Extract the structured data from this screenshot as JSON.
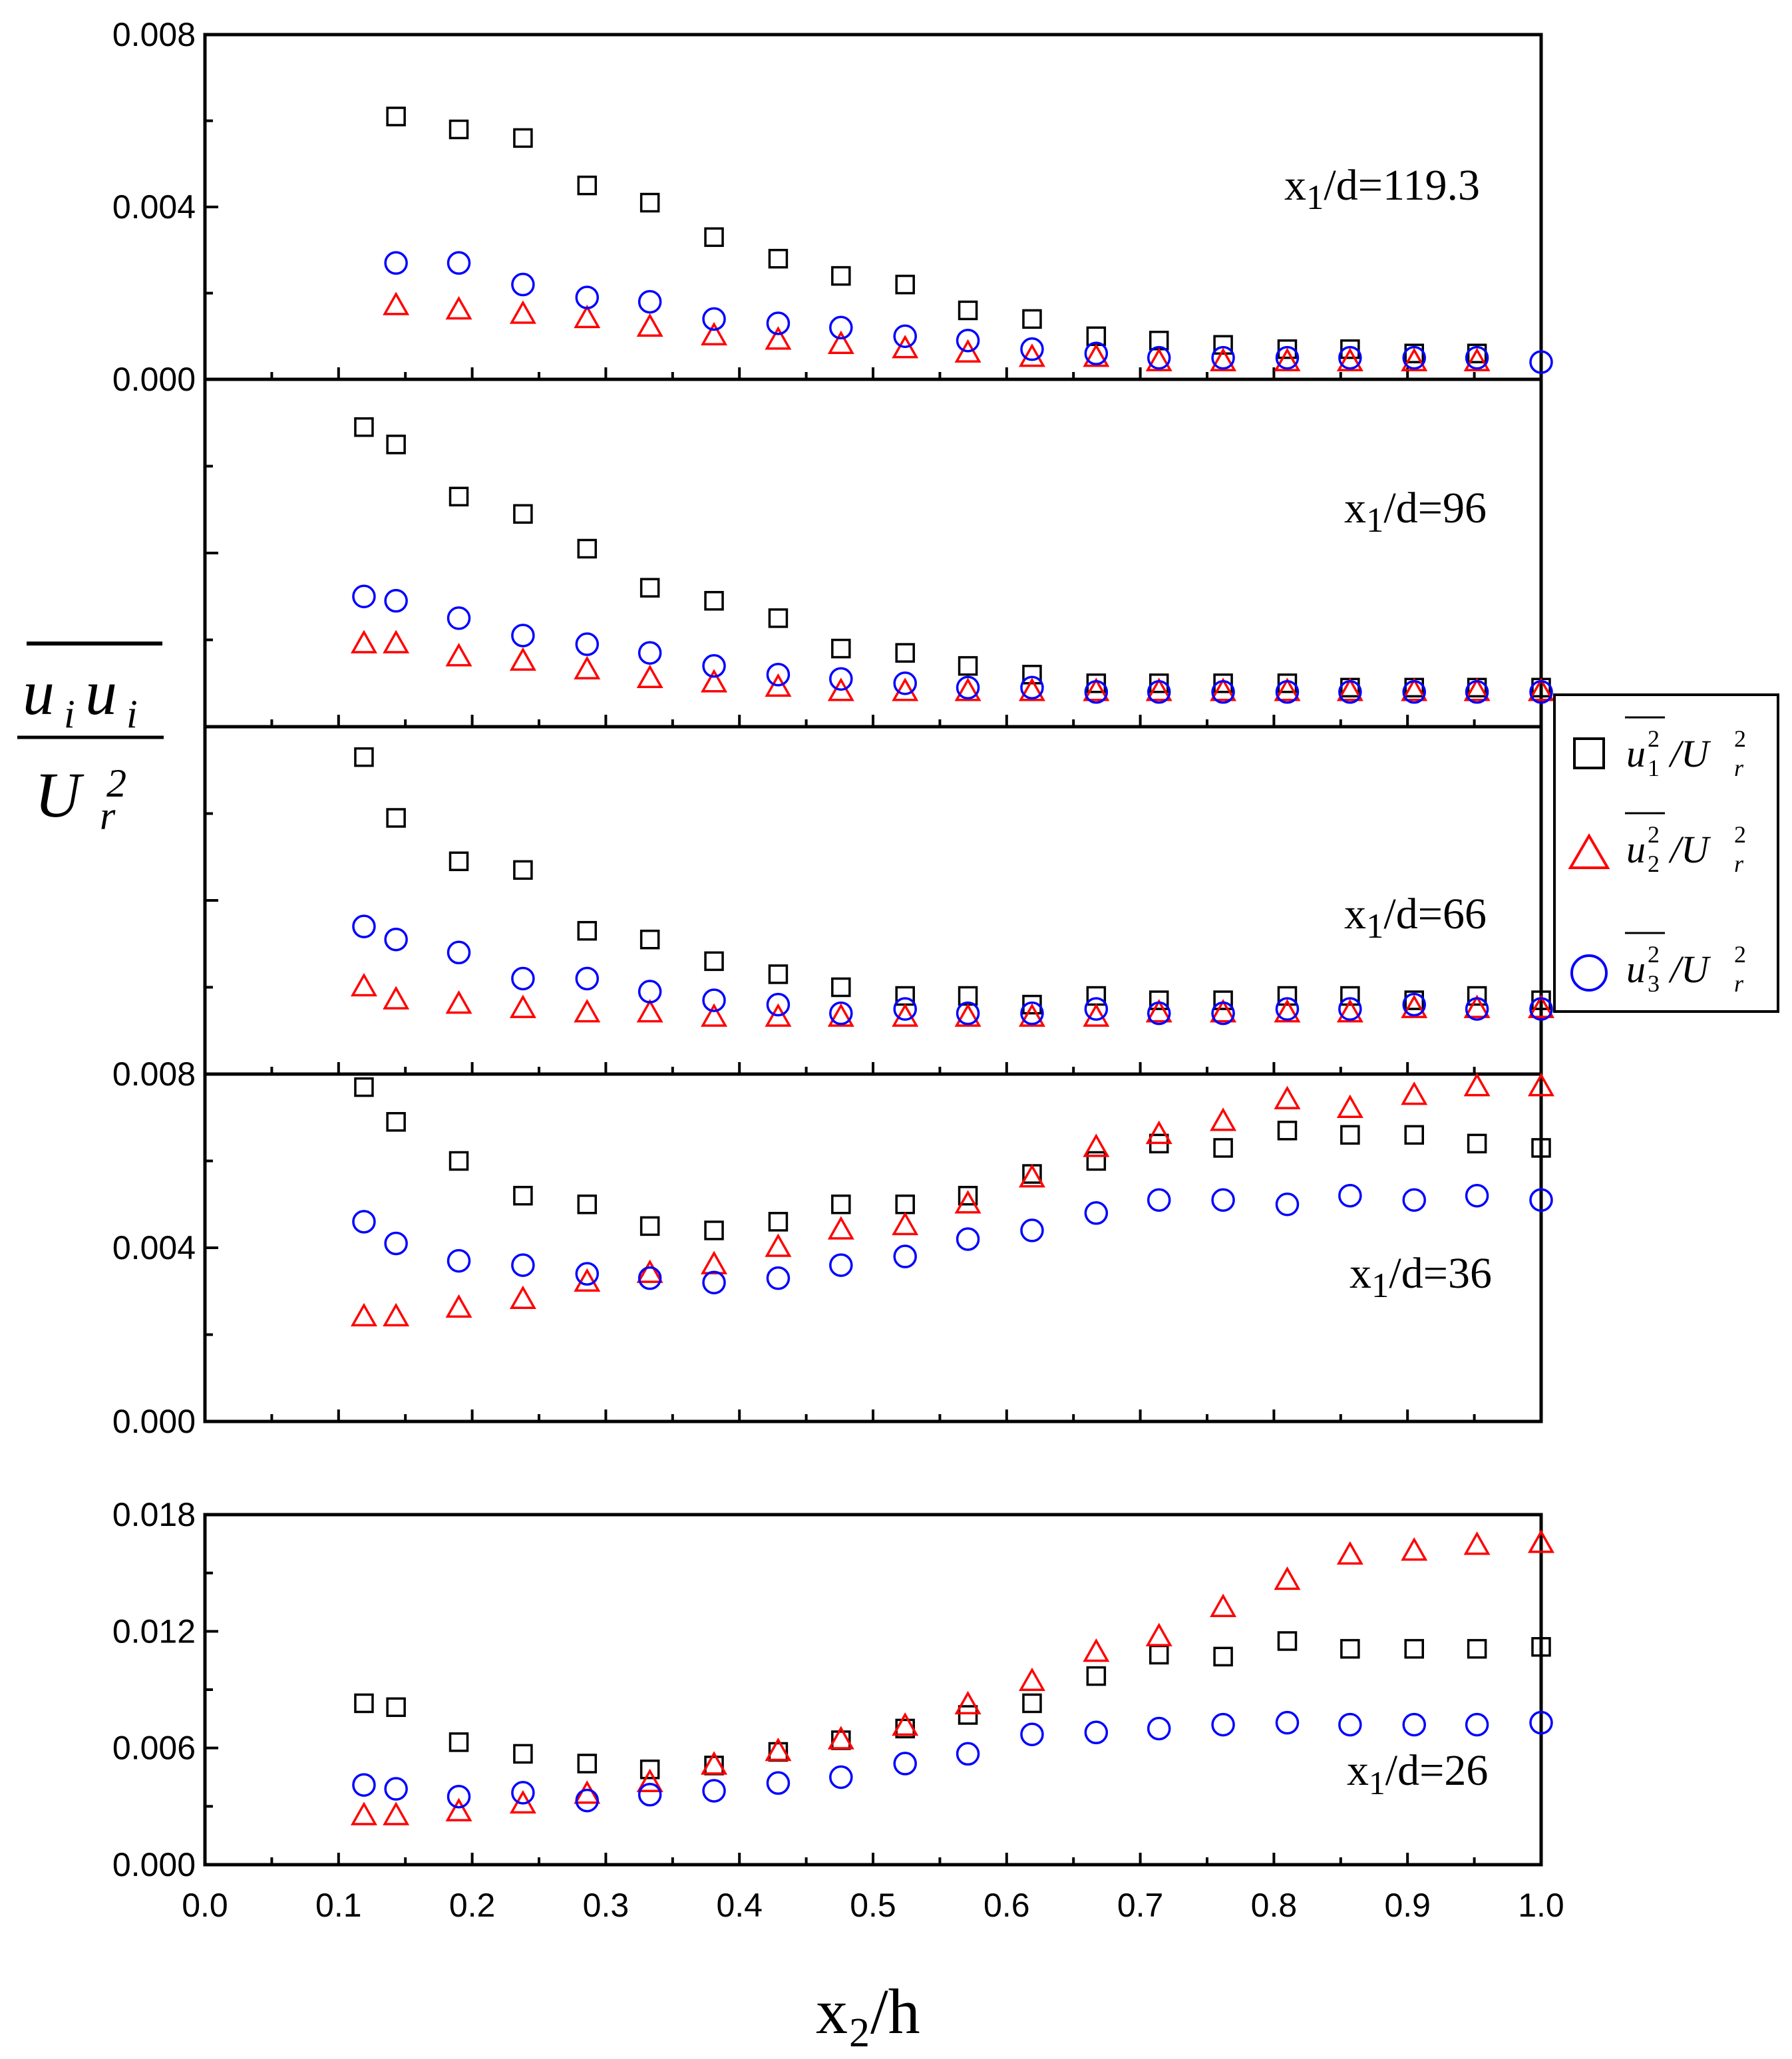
{
  "colors": {
    "u1": "#000000",
    "u2": "#ff0000",
    "u3": "#0000ff",
    "axis": "#000000"
  },
  "axis_titles": {
    "y_numerator_a": "u",
    "y_numerator_b": "u",
    "y_numerator_sub": "i",
    "y_denominator": "U",
    "y_denominator_sub": "r",
    "y_denominator_sup": "2",
    "x_main": "x",
    "x_sub": "2",
    "x_rest": "/h"
  },
  "legend": {
    "items": [
      {
        "marker": "square",
        "series": "u1",
        "base": "u",
        "sub": "1",
        "sup": "2",
        "rest": "/U",
        "rest_sub": "r",
        "rest_sup": "2"
      },
      {
        "marker": "triangle",
        "series": "u2",
        "base": "u",
        "sub": "2",
        "sup": "2",
        "rest": "/U",
        "rest_sub": "r",
        "rest_sup": "2"
      },
      {
        "marker": "circle",
        "series": "u3",
        "base": "u",
        "sub": "3",
        "sup": "2",
        "rest": "/U",
        "rest_sub": "r",
        "rest_sup": "2"
      }
    ]
  },
  "chart_data": [
    {
      "type": "scatter",
      "panel_label": {
        "main": "x",
        "sub": "1",
        "rest": "/d=119.3"
      },
      "xlabel": "x2/h",
      "ylabel": "u_i u_i / U_r^2",
      "xlim": [
        0.0,
        1.0
      ],
      "ylim": [
        0.0,
        0.008
      ],
      "y_ticks": [
        "0.000",
        "0.004",
        "0.008"
      ],
      "x": [
        0.143,
        0.19,
        0.238,
        0.286,
        0.333,
        0.381,
        0.429,
        0.476,
        0.524,
        0.571,
        0.619,
        0.667,
        0.714,
        0.762,
        0.81,
        0.857,
        0.905,
        0.952,
        1.0
      ],
      "series": [
        {
          "name": "u1^2/Ur^2",
          "key": "u1",
          "x": [
            0.143,
            0.19,
            0.238,
            0.286,
            0.333,
            0.381,
            0.429,
            0.476,
            0.524,
            0.571,
            0.619,
            0.667,
            0.714,
            0.762,
            0.81,
            0.857,
            0.905,
            0.952
          ],
          "values": [
            0.0061,
            0.0058,
            0.0056,
            0.0045,
            0.0041,
            0.0033,
            0.0028,
            0.0024,
            0.0022,
            0.0016,
            0.0014,
            0.001,
            0.0009,
            0.0008,
            0.0007,
            0.0007,
            0.0006,
            0.0006
          ]
        },
        {
          "name": "u2^2/Ur^2",
          "key": "u2",
          "x": [
            0.143,
            0.19,
            0.238,
            0.286,
            0.333,
            0.381,
            0.429,
            0.476,
            0.524,
            0.571,
            0.619,
            0.667,
            0.714,
            0.762,
            0.81,
            0.857,
            0.905,
            0.952
          ],
          "values": [
            0.0017,
            0.0016,
            0.0015,
            0.0014,
            0.0012,
            0.001,
            0.0009,
            0.0008,
            0.0007,
            0.0006,
            0.0005,
            0.0005,
            0.0004,
            0.0004,
            0.0004,
            0.0004,
            0.0004,
            0.0004
          ]
        },
        {
          "name": "u3^2/Ur^2",
          "key": "u3",
          "x": [
            0.143,
            0.19,
            0.238,
            0.286,
            0.333,
            0.381,
            0.429,
            0.476,
            0.524,
            0.571,
            0.619,
            0.667,
            0.714,
            0.762,
            0.81,
            0.857,
            0.905,
            0.952,
            1.0
          ],
          "values": [
            0.0027,
            0.0027,
            0.0022,
            0.0019,
            0.0018,
            0.0014,
            0.0013,
            0.0012,
            0.001,
            0.0009,
            0.0007,
            0.0006,
            0.0005,
            0.0005,
            0.0005,
            0.0005,
            0.0005,
            0.0005,
            0.0004
          ]
        }
      ]
    },
    {
      "type": "scatter",
      "panel_label": {
        "main": "x",
        "sub": "1",
        "rest": "/d=96"
      },
      "xlim": [
        0.0,
        1.0
      ],
      "ylim": [
        0.0,
        0.008
      ],
      "y_ticks": [],
      "series": [
        {
          "name": "u1^2/Ur^2",
          "key": "u1",
          "x": [
            0.119,
            0.143,
            0.19,
            0.238,
            0.286,
            0.333,
            0.381,
            0.429,
            0.476,
            0.524,
            0.571,
            0.619,
            0.667,
            0.714,
            0.762,
            0.81,
            0.857,
            0.905,
            0.952,
            1.0
          ],
          "values": [
            0.0069,
            0.0065,
            0.0053,
            0.0049,
            0.0041,
            0.0032,
            0.0029,
            0.0025,
            0.0018,
            0.0017,
            0.0014,
            0.0012,
            0.001,
            0.001,
            0.001,
            0.001,
            0.0009,
            0.0009,
            0.0009,
            0.0009
          ]
        },
        {
          "name": "u2^2/Ur^2",
          "key": "u2",
          "x": [
            0.119,
            0.143,
            0.19,
            0.238,
            0.286,
            0.333,
            0.381,
            0.429,
            0.476,
            0.524,
            0.571,
            0.619,
            0.667,
            0.714,
            0.762,
            0.81,
            0.857,
            0.905,
            0.952,
            1.0
          ],
          "values": [
            0.0019,
            0.0019,
            0.0016,
            0.0015,
            0.0013,
            0.0011,
            0.001,
            0.0009,
            0.0008,
            0.0008,
            0.0008,
            0.0008,
            0.0008,
            0.0008,
            0.0008,
            0.0008,
            0.0008,
            0.0008,
            0.0008,
            0.0008
          ]
        },
        {
          "name": "u3^2/Ur^2",
          "key": "u3",
          "x": [
            0.119,
            0.143,
            0.19,
            0.238,
            0.286,
            0.333,
            0.381,
            0.429,
            0.476,
            0.524,
            0.571,
            0.619,
            0.667,
            0.714,
            0.762,
            0.81,
            0.857,
            0.905,
            0.952,
            1.0
          ],
          "values": [
            0.003,
            0.0029,
            0.0025,
            0.0021,
            0.0019,
            0.0017,
            0.0014,
            0.0012,
            0.0011,
            0.001,
            0.0009,
            0.0009,
            0.0008,
            0.0008,
            0.0008,
            0.0008,
            0.0008,
            0.0008,
            0.0008,
            0.0008
          ]
        }
      ]
    },
    {
      "type": "scatter",
      "panel_label": {
        "main": "x",
        "sub": "1",
        "rest": "/d=66"
      },
      "xlim": [
        0.0,
        1.0
      ],
      "ylim": [
        0.0,
        0.008
      ],
      "y_ticks": [],
      "series": [
        {
          "name": "u1^2/Ur^2",
          "key": "u1",
          "x": [
            0.119,
            0.143,
            0.19,
            0.238,
            0.286,
            0.333,
            0.381,
            0.429,
            0.476,
            0.524,
            0.571,
            0.619,
            0.667,
            0.714,
            0.762,
            0.81,
            0.857,
            0.905,
            0.952,
            1.0
          ],
          "values": [
            0.0073,
            0.0059,
            0.0049,
            0.0047,
            0.0033,
            0.0031,
            0.0026,
            0.0023,
            0.002,
            0.0018,
            0.0018,
            0.0016,
            0.0018,
            0.0017,
            0.0017,
            0.0018,
            0.0018,
            0.0017,
            0.0018,
            0.0017
          ]
        },
        {
          "name": "u2^2/Ur^2",
          "key": "u2",
          "x": [
            0.119,
            0.143,
            0.19,
            0.238,
            0.286,
            0.333,
            0.381,
            0.429,
            0.476,
            0.524,
            0.571,
            0.619,
            0.667,
            0.714,
            0.762,
            0.81,
            0.857,
            0.905,
            0.952,
            1.0
          ],
          "values": [
            0.002,
            0.0017,
            0.0016,
            0.0015,
            0.0014,
            0.0014,
            0.0013,
            0.0013,
            0.0013,
            0.0013,
            0.0013,
            0.0013,
            0.0013,
            0.0014,
            0.0014,
            0.0014,
            0.0014,
            0.0015,
            0.0015,
            0.0015
          ]
        },
        {
          "name": "u3^2/Ur^2",
          "key": "u3",
          "x": [
            0.119,
            0.143,
            0.19,
            0.238,
            0.286,
            0.333,
            0.381,
            0.429,
            0.476,
            0.524,
            0.571,
            0.619,
            0.667,
            0.714,
            0.762,
            0.81,
            0.857,
            0.905,
            0.952,
            1.0
          ],
          "values": [
            0.0034,
            0.0031,
            0.0028,
            0.0022,
            0.0022,
            0.0019,
            0.0017,
            0.0016,
            0.0014,
            0.0015,
            0.0014,
            0.0014,
            0.0015,
            0.0014,
            0.0014,
            0.0015,
            0.0015,
            0.0016,
            0.0015,
            0.0015
          ]
        }
      ]
    },
    {
      "type": "scatter",
      "panel_label": {
        "main": "x",
        "sub": "1",
        "rest": "/d=36"
      },
      "xlim": [
        0.0,
        1.0
      ],
      "ylim": [
        0.0,
        0.008
      ],
      "y_ticks": [
        "0.000",
        "0.004",
        "0.008"
      ],
      "series": [
        {
          "name": "u1^2/Ur^2",
          "key": "u1",
          "x": [
            0.119,
            0.143,
            0.19,
            0.238,
            0.286,
            0.333,
            0.381,
            0.429,
            0.476,
            0.524,
            0.571,
            0.619,
            0.667,
            0.714,
            0.762,
            0.81,
            0.857,
            0.905,
            0.952,
            1.0
          ],
          "values": [
            0.0077,
            0.0069,
            0.006,
            0.0052,
            0.005,
            0.0045,
            0.0044,
            0.0046,
            0.005,
            0.005,
            0.0052,
            0.0057,
            0.006,
            0.0064,
            0.0063,
            0.0067,
            0.0066,
            0.0066,
            0.0064,
            0.0063
          ]
        },
        {
          "name": "u2^2/Ur^2",
          "key": "u2",
          "x": [
            0.119,
            0.143,
            0.19,
            0.238,
            0.286,
            0.333,
            0.381,
            0.429,
            0.476,
            0.524,
            0.571,
            0.619,
            0.667,
            0.714,
            0.762,
            0.81,
            0.857,
            0.905,
            0.952,
            1.0
          ],
          "values": [
            0.0024,
            0.0024,
            0.0026,
            0.0028,
            0.0032,
            0.0034,
            0.0036,
            0.004,
            0.0044,
            0.0045,
            0.005,
            0.0056,
            0.0063,
            0.0066,
            0.0069,
            0.0074,
            0.0072,
            0.0075,
            0.0077,
            0.0077
          ]
        },
        {
          "name": "u3^2/Ur^2",
          "key": "u3",
          "x": [
            0.119,
            0.143,
            0.19,
            0.238,
            0.286,
            0.333,
            0.381,
            0.429,
            0.476,
            0.524,
            0.571,
            0.619,
            0.667,
            0.714,
            0.762,
            0.81,
            0.857,
            0.905,
            0.952,
            1.0
          ],
          "values": [
            0.0046,
            0.0041,
            0.0037,
            0.0036,
            0.0034,
            0.0033,
            0.0032,
            0.0033,
            0.0036,
            0.0038,
            0.0042,
            0.0044,
            0.0048,
            0.0051,
            0.0051,
            0.005,
            0.0052,
            0.0051,
            0.0052,
            0.0051
          ]
        }
      ]
    },
    {
      "type": "scatter",
      "panel_label": {
        "main": "x",
        "sub": "1",
        "rest": "/d=26"
      },
      "xlabel": "x2/h",
      "xlim": [
        0.0,
        1.0
      ],
      "ylim": [
        0.0,
        0.018
      ],
      "y_ticks": [
        "0.000",
        "0.006",
        "0.012",
        "0.018"
      ],
      "x_ticks": [
        "0.0",
        "0.1",
        "0.2",
        "0.3",
        "0.4",
        "0.5",
        "0.6",
        "0.7",
        "0.8",
        "0.9",
        "1.0"
      ],
      "series": [
        {
          "name": "u1^2/Ur^2",
          "key": "u1",
          "x": [
            0.119,
            0.143,
            0.19,
            0.238,
            0.286,
            0.333,
            0.381,
            0.429,
            0.476,
            0.524,
            0.571,
            0.619,
            0.667,
            0.714,
            0.762,
            0.81,
            0.857,
            0.905,
            0.952,
            1.0
          ],
          "values": [
            0.0083,
            0.0081,
            0.0063,
            0.0057,
            0.0052,
            0.0049,
            0.0051,
            0.0058,
            0.0064,
            0.007,
            0.0077,
            0.0083,
            0.0097,
            0.0108,
            0.0107,
            0.0115,
            0.0111,
            0.0111,
            0.0111,
            0.0112
          ]
        },
        {
          "name": "u2^2/Ur^2",
          "key": "u2",
          "x": [
            0.119,
            0.143,
            0.19,
            0.238,
            0.286,
            0.333,
            0.381,
            0.429,
            0.476,
            0.524,
            0.571,
            0.619,
            0.667,
            0.714,
            0.762,
            0.81,
            0.857,
            0.905,
            0.952,
            1.0
          ],
          "values": [
            0.0025,
            0.0025,
            0.0027,
            0.0031,
            0.0036,
            0.0042,
            0.0051,
            0.0058,
            0.0064,
            0.0071,
            0.0082,
            0.0094,
            0.0109,
            0.0117,
            0.0132,
            0.0146,
            0.0159,
            0.0161,
            0.0164,
            0.0165
          ]
        },
        {
          "name": "u3^2/Ur^2",
          "key": "u3",
          "x": [
            0.119,
            0.143,
            0.19,
            0.238,
            0.286,
            0.333,
            0.381,
            0.429,
            0.476,
            0.524,
            0.571,
            0.619,
            0.667,
            0.714,
            0.762,
            0.81,
            0.857,
            0.905,
            0.952,
            1.0
          ],
          "values": [
            0.0041,
            0.0039,
            0.0035,
            0.0037,
            0.0033,
            0.0036,
            0.0038,
            0.0042,
            0.0045,
            0.0052,
            0.0057,
            0.0067,
            0.0068,
            0.007,
            0.0072,
            0.0073,
            0.0072,
            0.0072,
            0.0072,
            0.0073
          ]
        }
      ]
    }
  ]
}
